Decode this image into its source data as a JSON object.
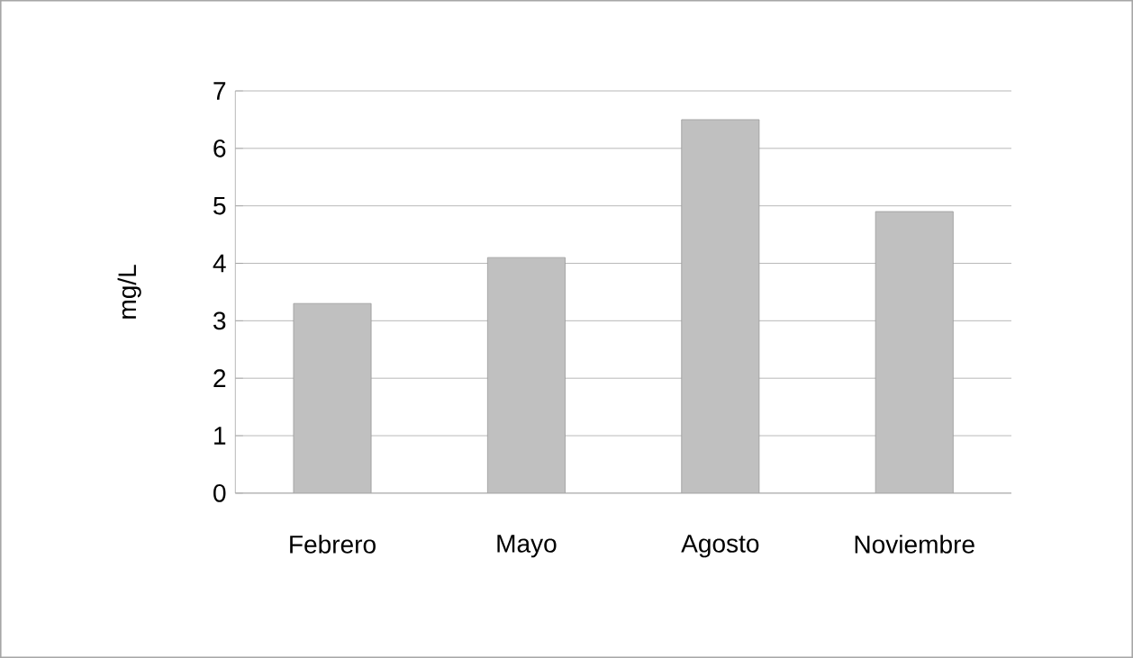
{
  "chart_data": {
    "type": "bar",
    "ylabel": "mg/L",
    "categories": [
      "Febrero",
      "Mayo",
      "Agosto",
      "Noviembre"
    ],
    "values": [
      3.3,
      4.1,
      6.5,
      4.9
    ],
    "color": "#c0c0c0",
    "ylim": [
      0,
      7
    ],
    "yticks": [
      0,
      1,
      2,
      3,
      4,
      5,
      6,
      7
    ],
    "grid": "y"
  }
}
